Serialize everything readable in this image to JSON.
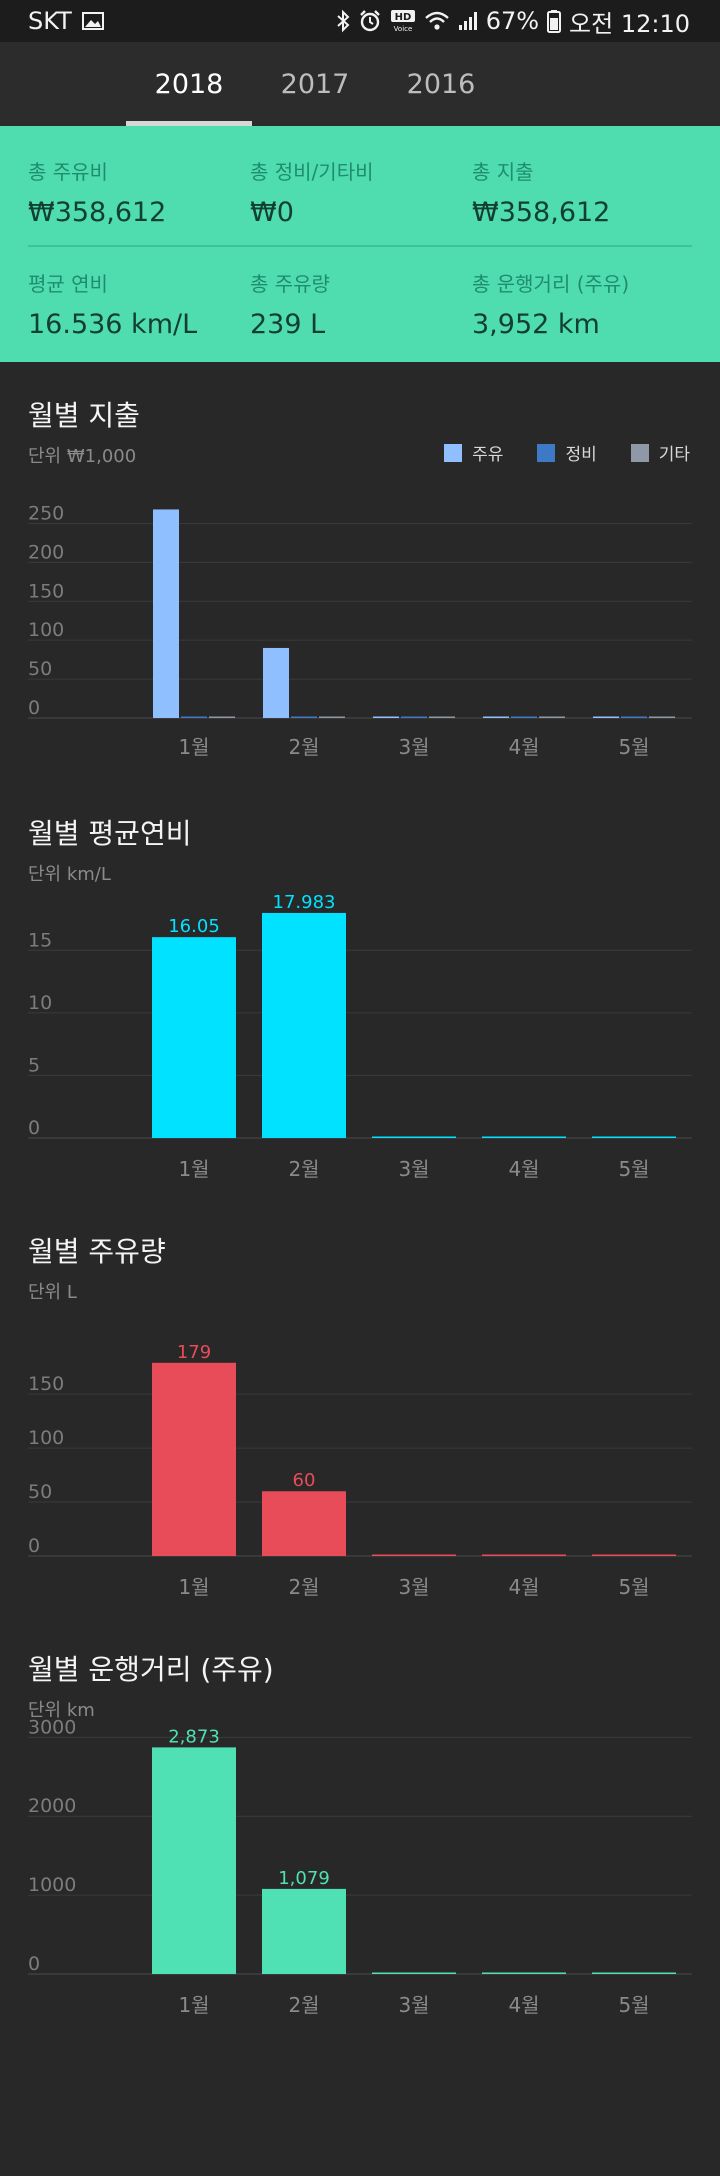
{
  "status_bar": {
    "carrier": "SKT",
    "battery_percent": "67%",
    "time": "오전 12:10",
    "icons": [
      "image-icon",
      "bluetooth-icon",
      "alarm-icon",
      "hd-voice-icon",
      "wifi-icon",
      "signal-icon",
      "battery-icon"
    ]
  },
  "tabs": [
    {
      "label": "2018",
      "active": true
    },
    {
      "label": "2017",
      "active": false
    },
    {
      "label": "2016",
      "active": false
    }
  ],
  "summary": {
    "total_fuel_label": "총 주유비",
    "total_fuel_value": "₩358,612",
    "total_maint_label": "총 정비/기타비",
    "total_maint_value": "₩0",
    "total_spend_label": "총 지출",
    "total_spend_value": "₩358,612",
    "avg_efficiency_label": "평균 연비",
    "avg_efficiency_value": "16.536 km/L",
    "total_volume_label": "총 주유량",
    "total_volume_value": "239 L",
    "total_distance_label": "총 운행거리 (주유)",
    "total_distance_value": "3,952 km"
  },
  "charts": {
    "spending": {
      "title": "월별 지출",
      "unit": "단위 ₩1,000",
      "legend": [
        {
          "label": "주유",
          "color": "#8fbfff"
        },
        {
          "label": "정비",
          "color": "#3d79c4"
        },
        {
          "label": "기타",
          "color": "#8f99a5"
        }
      ]
    },
    "efficiency": {
      "title": "월별 평균연비",
      "unit": "단위 km/L"
    },
    "volume": {
      "title": "월별 주유량",
      "unit": "단위 L"
    },
    "distance": {
      "title": "월별 운행거리 (주유)",
      "unit": "단위 km"
    }
  },
  "chart_data": [
    {
      "type": "bar",
      "id": "spending",
      "categories": [
        "1월",
        "2월",
        "3월",
        "4월",
        "5월"
      ],
      "series": [
        {
          "name": "주유",
          "values": [
            268,
            90,
            0,
            0,
            0
          ],
          "color": "#8fbfff"
        },
        {
          "name": "정비",
          "values": [
            0,
            0,
            0,
            0,
            0
          ],
          "color": "#3d79c4"
        },
        {
          "name": "기타",
          "values": [
            0,
            0,
            0,
            0,
            0
          ],
          "color": "#8f99a5"
        }
      ],
      "yticks": [
        0,
        50,
        100,
        150,
        200,
        250
      ],
      "ylim": [
        0,
        275
      ],
      "data_labels": false,
      "legend_position": "top-right"
    },
    {
      "type": "bar",
      "id": "efficiency",
      "categories": [
        "1월",
        "2월",
        "3월",
        "4월",
        "5월"
      ],
      "series": [
        {
          "values": [
            16.05,
            17.983,
            0,
            0,
            0
          ],
          "labels": [
            "16.05",
            "17.983",
            "",
            "",
            ""
          ],
          "color": "#00e2ff"
        }
      ],
      "yticks": [
        0,
        5,
        10,
        15
      ],
      "ylim": [
        0,
        19.1
      ],
      "data_labels": true
    },
    {
      "type": "bar",
      "id": "volume",
      "categories": [
        "1월",
        "2월",
        "3월",
        "4월",
        "5월"
      ],
      "series": [
        {
          "values": [
            179,
            60,
            0,
            0,
            0
          ],
          "labels": [
            "179",
            "60",
            "",
            "",
            ""
          ],
          "color": "#e84c58"
        }
      ],
      "yticks": [
        0,
        50,
        100,
        150
      ],
      "ylim": [
        0,
        189
      ],
      "data_labels": true
    },
    {
      "type": "bar",
      "id": "distance",
      "categories": [
        "1월",
        "2월",
        "3월",
        "4월",
        "5월"
      ],
      "series": [
        {
          "values": [
            2873,
            1079,
            0,
            0,
            0
          ],
          "labels": [
            "2,873",
            "1,079",
            "",
            "",
            ""
          ],
          "color": "#4fe0b3"
        }
      ],
      "yticks": [
        0,
        1000,
        2000,
        3000
      ],
      "ylim": [
        0,
        3030
      ],
      "data_labels": true
    }
  ]
}
